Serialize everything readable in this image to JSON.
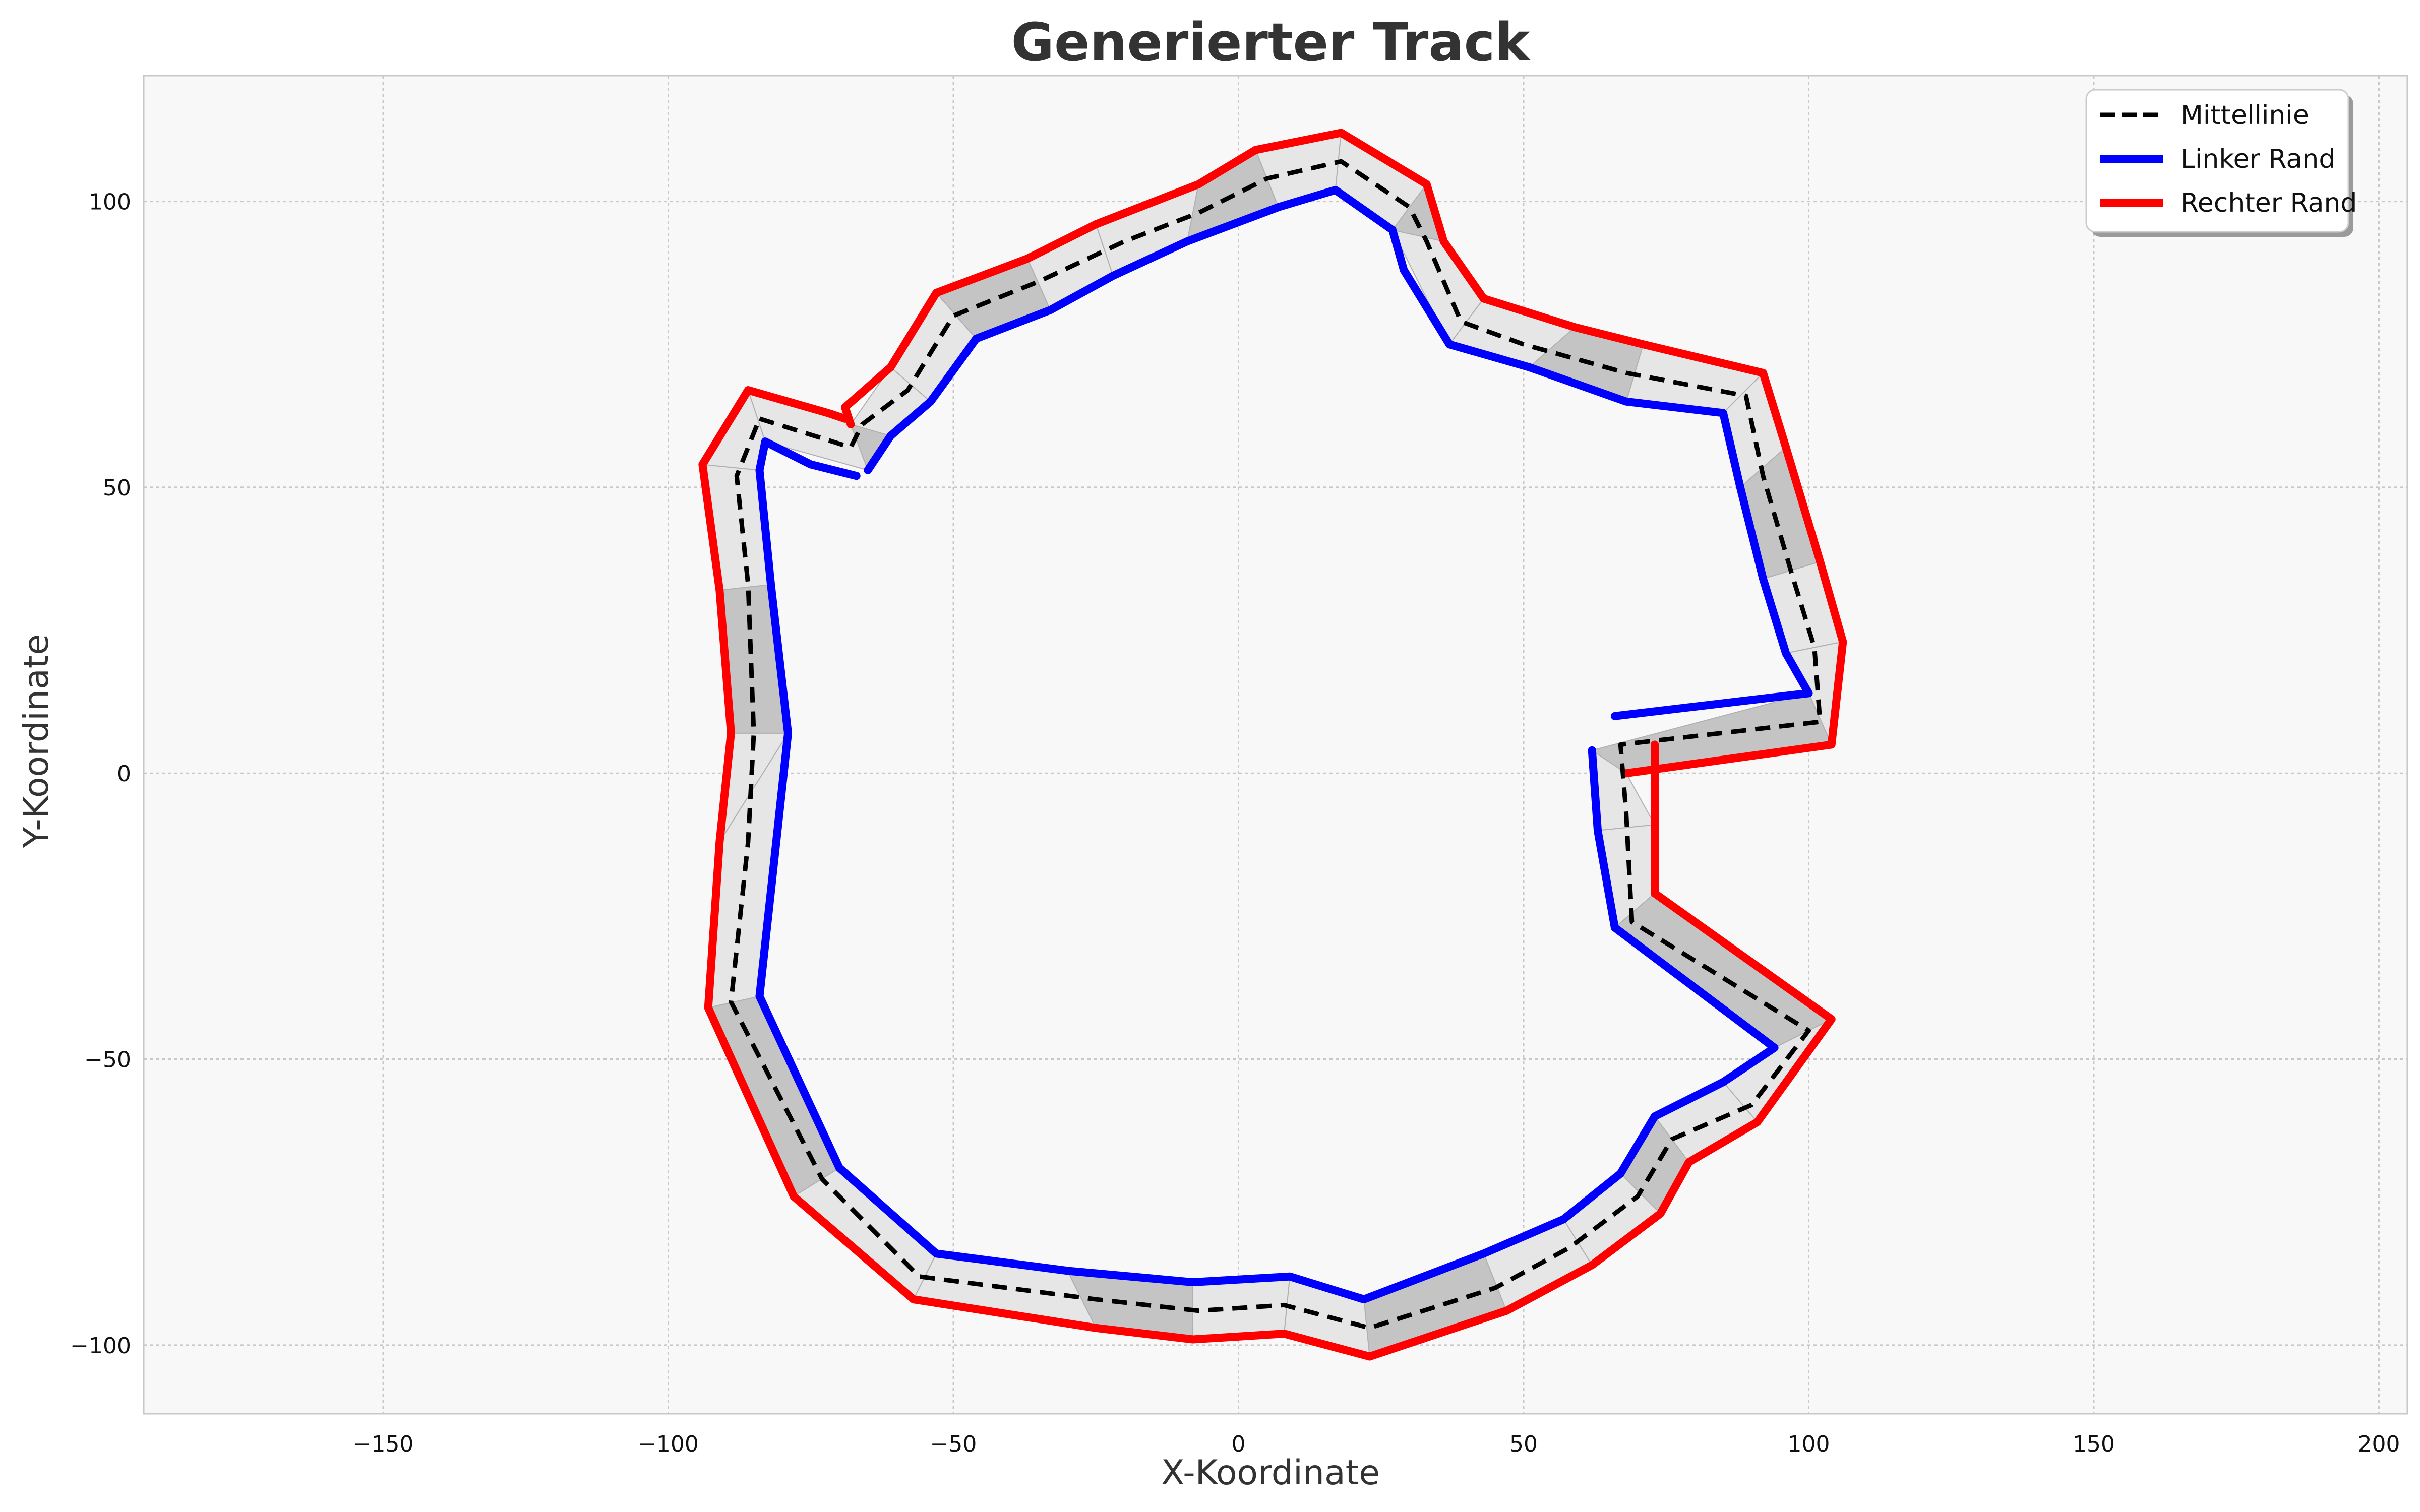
{
  "chart_data": {
    "type": "line",
    "title": "Generierter Track",
    "xlabel": "X-Koordinate",
    "ylabel": "Y-Koordinate",
    "xlim": [
      -192,
      205
    ],
    "ylim": [
      -112,
      122
    ],
    "x_ticks": [
      -150,
      -100,
      -50,
      0,
      50,
      100,
      150,
      200
    ],
    "y_ticks": [
      -100,
      -50,
      0,
      50,
      100
    ],
    "x_tick_labels": [
      "−150",
      "−100",
      "−50",
      "0",
      "50",
      "100",
      "150",
      "200"
    ],
    "y_tick_labels": [
      "−100",
      "−50",
      "0",
      "50",
      "100"
    ],
    "grid": true,
    "legend_position": "top-right",
    "colors": {
      "centerline": "#000000",
      "left_edge": "#0000ff",
      "right_edge": "#ff0000",
      "plot_background": "#f8f8f8",
      "road_light": "#e6e6e6",
      "road_dark": "#c4c4c4"
    },
    "series": [
      {
        "name": "Mittellinie",
        "style": "dashed",
        "points": [
          [
            -84,
            62
          ],
          [
            -68,
            57
          ],
          [
            -66,
            61
          ],
          [
            -58,
            67
          ],
          [
            -50,
            80
          ],
          [
            -35,
            86
          ],
          [
            -20,
            93
          ],
          [
            -7,
            98
          ],
          [
            5,
            104
          ],
          [
            18,
            107
          ],
          [
            30,
            99
          ],
          [
            33,
            93
          ],
          [
            39,
            79
          ],
          [
            50,
            75
          ],
          [
            68,
            70
          ],
          [
            89,
            66
          ],
          [
            92,
            52
          ],
          [
            97,
            35
          ],
          [
            101,
            22
          ],
          [
            102,
            9
          ],
          [
            67,
            5
          ],
          [
            68,
            -7
          ],
          [
            69,
            -26
          ],
          [
            100,
            -45
          ],
          [
            90,
            -58
          ],
          [
            76,
            -64
          ],
          [
            70,
            -74
          ],
          [
            58,
            -83
          ],
          [
            45,
            -90
          ],
          [
            23,
            -97
          ],
          [
            8,
            -93
          ],
          [
            -7,
            -94
          ],
          [
            -25,
            -92
          ],
          [
            -56,
            -88
          ],
          [
            -73,
            -71
          ],
          [
            -89,
            -40
          ],
          [
            -86,
            -12
          ],
          [
            -85,
            7
          ],
          [
            -86,
            33
          ],
          [
            -88,
            52
          ],
          [
            -84,
            62
          ]
        ]
      },
      {
        "name": "Linker Rand",
        "points": [
          [
            -67,
            52
          ],
          [
            -75,
            54
          ],
          [
            -83,
            58
          ],
          [
            -84,
            53
          ],
          [
            -82,
            33
          ],
          [
            -79,
            7
          ],
          [
            -84,
            -39
          ],
          [
            -70,
            -69
          ],
          [
            -53,
            -84
          ],
          [
            -30,
            -87
          ],
          [
            -8,
            -89
          ],
          [
            9,
            -88
          ],
          [
            22,
            -92
          ],
          [
            43,
            -84
          ],
          [
            57,
            -78
          ],
          [
            67,
            -70
          ],
          [
            73,
            -60
          ],
          [
            85,
            -54
          ],
          [
            94,
            -48
          ],
          [
            66,
            -27
          ],
          [
            63,
            -10
          ],
          [
            62,
            4
          ],
          [
            null,
            null
          ],
          [
            66,
            10
          ],
          [
            100,
            14
          ],
          [
            96,
            21
          ],
          [
            92,
            34
          ],
          [
            88,
            50
          ],
          [
            85,
            63
          ],
          [
            68,
            65
          ],
          [
            51,
            71
          ],
          [
            37,
            75
          ],
          [
            29,
            88
          ],
          [
            27,
            95
          ],
          [
            17,
            102
          ],
          [
            7,
            99
          ],
          [
            -9,
            93
          ],
          [
            -22,
            87
          ],
          [
            -33,
            81
          ],
          [
            -46,
            76
          ],
          [
            -54,
            65
          ],
          [
            -61,
            59
          ],
          [
            -65,
            53
          ]
        ]
      },
      {
        "name": "Rechter Rand",
        "points": [
          [
            -68,
            61
          ],
          [
            -69,
            64
          ],
          [
            -61,
            71
          ],
          [
            -53,
            84
          ],
          [
            -37,
            90
          ],
          [
            -25,
            96
          ],
          [
            -7,
            103
          ],
          [
            3,
            109
          ],
          [
            18,
            112
          ],
          [
            33,
            103
          ],
          [
            36,
            93
          ],
          [
            43,
            83
          ],
          [
            59,
            78
          ],
          [
            71,
            75
          ],
          [
            92,
            70
          ],
          [
            96,
            57
          ],
          [
            102,
            37
          ],
          [
            106,
            23
          ],
          [
            104,
            5
          ],
          [
            68,
            0
          ],
          [
            null,
            null
          ],
          [
            73,
            5
          ],
          [
            73,
            -9
          ],
          [
            73,
            -21
          ],
          [
            104,
            -43
          ],
          [
            91,
            -61
          ],
          [
            79,
            -68
          ],
          [
            74,
            -77
          ],
          [
            62,
            -86
          ],
          [
            47,
            -94
          ],
          [
            23,
            -102
          ],
          [
            8,
            -98
          ],
          [
            -8,
            -99
          ],
          [
            -25,
            -97
          ],
          [
            -57,
            -92
          ],
          [
            -78,
            -74
          ],
          [
            -93,
            -41
          ],
          [
            -91,
            -12
          ],
          [
            -89,
            7
          ],
          [
            -91,
            32
          ],
          [
            -94,
            54
          ],
          [
            -86,
            67
          ],
          [
            -72,
            63
          ],
          [
            -69,
            62
          ]
        ]
      }
    ]
  }
}
